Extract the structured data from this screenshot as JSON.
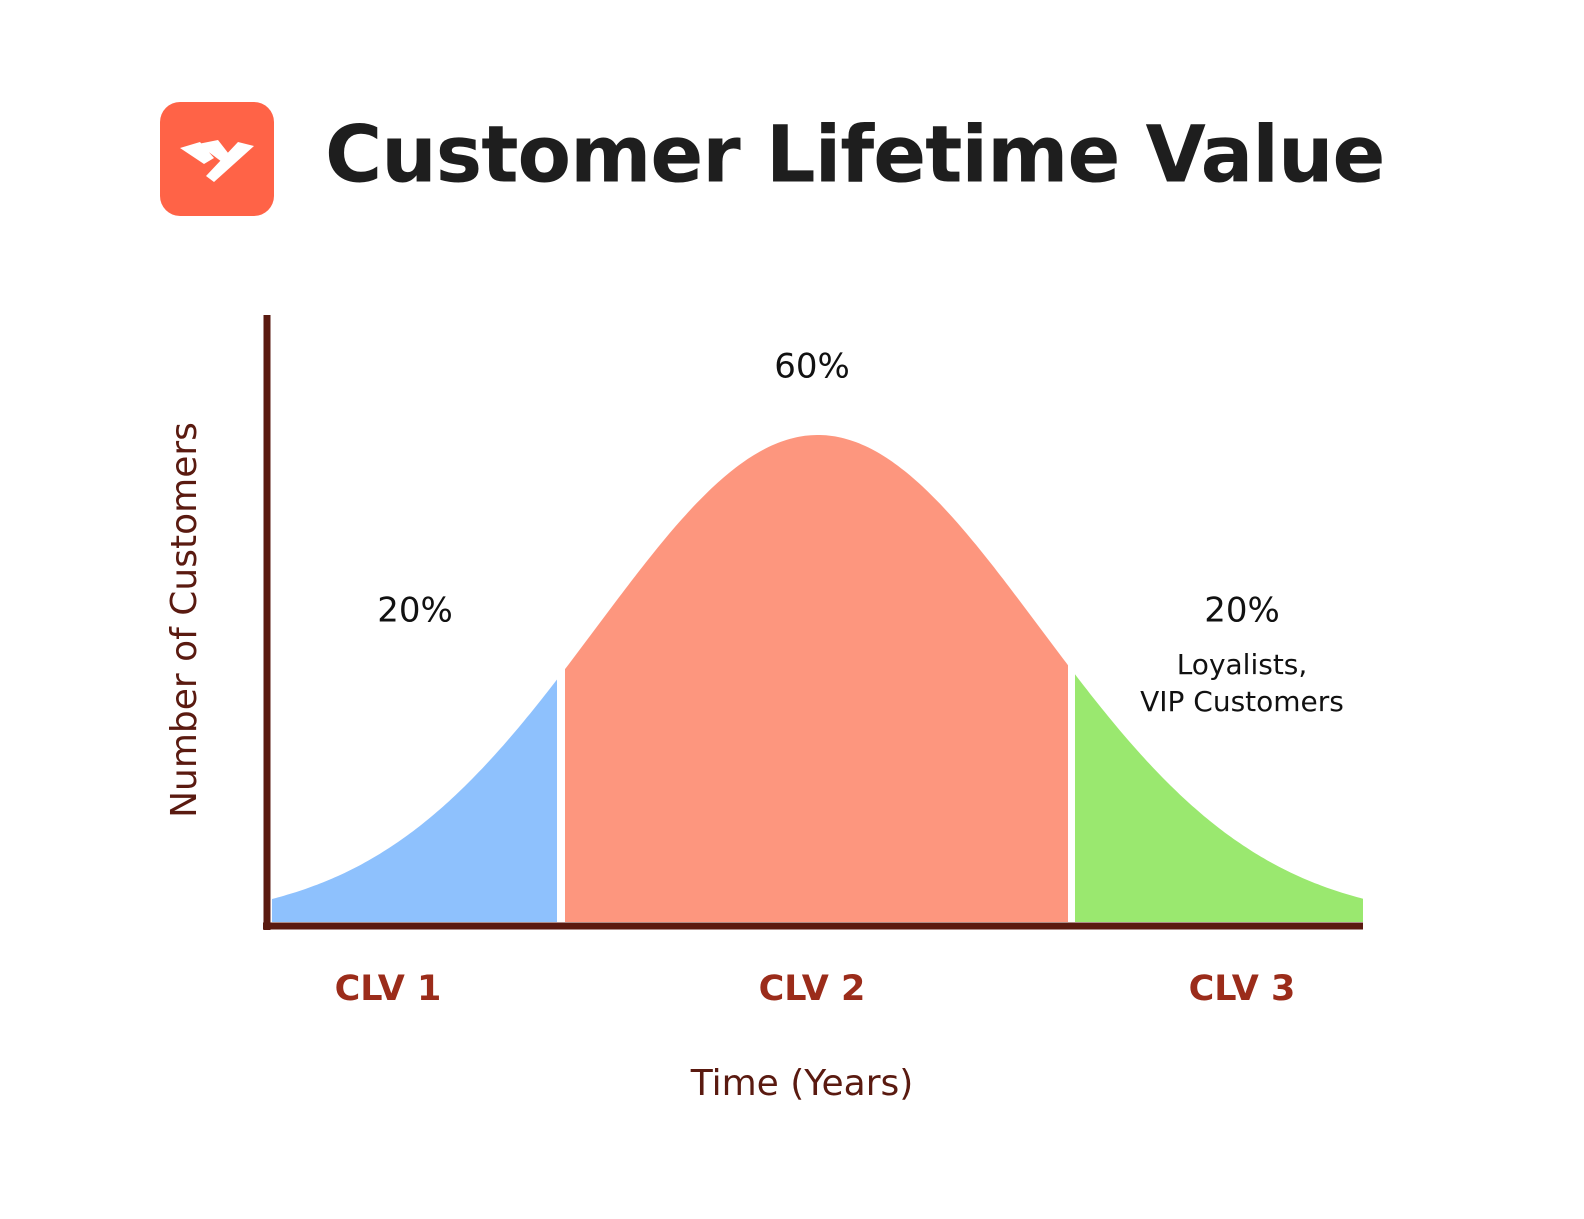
{
  "chart_data": {
    "type": "bell",
    "title": "Customer Lifetime Value",
    "categories": [
      "CLV 1",
      "CLV 2",
      "CLV 3"
    ],
    "values": [
      20,
      60,
      20
    ],
    "value_labels": [
      "20%",
      "60%",
      "20%"
    ],
    "colors": [
      "#8ec1fd",
      "#fd967e",
      "#9ae86f"
    ],
    "annotation": [
      "Loyalists,",
      "VIP Customers"
    ],
    "xlabel": "Time (Years)",
    "ylabel": "Number of Customers"
  }
}
